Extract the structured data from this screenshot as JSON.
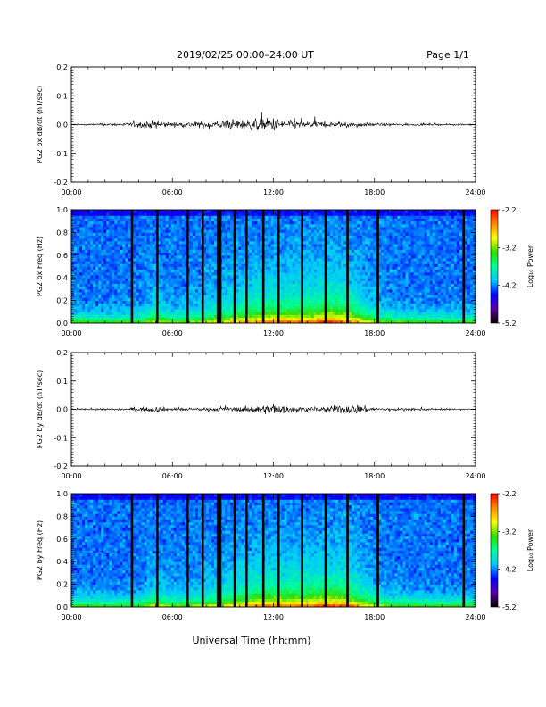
{
  "header": {
    "title": "2019/02/25  00:00–24:00 UT",
    "page": "Page 1/1"
  },
  "footer": {
    "xlabel": "Universal Time (hh:mm)"
  },
  "colors": {
    "trace": "#000000",
    "colorbar_stops": [
      "#000000",
      "#5a00a0",
      "#0000ff",
      "#00c8ff",
      "#00ff96",
      "#32dc00",
      "#ffff00",
      "#ff8c00",
      "#ff0000"
    ]
  },
  "chart_data": [
    {
      "type": "line",
      "ylabel": "PG2 bx dB/dt (nT/sec)",
      "xticks": [
        "00:00",
        "06:00",
        "12:00",
        "18:00",
        "24:00"
      ],
      "xlim": [
        0,
        24
      ],
      "ylim": [
        -0.2,
        0.2
      ],
      "yticks": [
        "0.2",
        "0.1",
        "0.0",
        "-0.1",
        "-0.2"
      ],
      "x_unit": "hours UT",
      "series": [
        {
          "x": [
            0,
            1,
            2,
            3,
            4,
            5,
            6,
            7,
            8,
            9,
            10,
            11,
            12,
            13,
            14,
            15,
            16,
            17,
            18,
            19,
            20,
            21,
            22,
            23,
            24
          ],
          "values": [
            0.005,
            0.005,
            0.008,
            0.01,
            0.018,
            0.03,
            0.015,
            0.02,
            0.025,
            0.03,
            0.035,
            0.04,
            0.05,
            0.03,
            0.025,
            0.02,
            0.02,
            0.015,
            0.01,
            0.008,
            0.007,
            0.006,
            0.005,
            0.005,
            0.005
          ]
        }
      ]
    },
    {
      "type": "heatmap",
      "ylabel": "PG2 bx Freq (Hz)",
      "xticks": [
        "00:00",
        "06:00",
        "12:00",
        "18:00",
        "24:00"
      ],
      "xlim": [
        0,
        24
      ],
      "ylim": [
        0,
        1
      ],
      "yticks": [
        "1.0",
        "0.8",
        "0.6",
        "0.4",
        "0.2",
        "0.0"
      ],
      "colorbar": {
        "label": "Log₁₀ Power",
        "ticks": [
          "-2.2",
          "-3.2",
          "-4.2",
          "-5.2"
        ],
        "range": [
          -5.2,
          -2.2
        ]
      },
      "gaps_hours": [
        3.6,
        5.1,
        6.9,
        7.8,
        8.7,
        8.85,
        9.7,
        10.4,
        11.4,
        12.3,
        13.7,
        15.1,
        16.4,
        18.2,
        23.3
      ]
    },
    {
      "type": "line",
      "ylabel": "PG2 by dB/dt (nT/sec)",
      "xticks": [
        "00:00",
        "06:00",
        "12:00",
        "18:00",
        "24:00"
      ],
      "xlim": [
        0,
        24
      ],
      "ylim": [
        -0.2,
        0.2
      ],
      "yticks": [
        "0.2",
        "0.1",
        "0.0",
        "-0.1",
        "-0.2"
      ],
      "x_unit": "hours UT",
      "series": [
        {
          "x": [
            0,
            1,
            2,
            3,
            4,
            5,
            6,
            7,
            8,
            9,
            10,
            11,
            12,
            13,
            14,
            15,
            16,
            17,
            18,
            19,
            20,
            21,
            22,
            23,
            24
          ],
          "values": [
            0.005,
            0.005,
            0.006,
            0.008,
            0.012,
            0.02,
            0.01,
            0.01,
            0.012,
            0.015,
            0.018,
            0.025,
            0.04,
            0.02,
            0.015,
            0.018,
            0.03,
            0.035,
            0.012,
            0.01,
            0.008,
            0.008,
            0.006,
            0.005,
            0.005
          ]
        }
      ]
    },
    {
      "type": "heatmap",
      "ylabel": "PG2 by Freq (Hz)",
      "xticks": [
        "00:00",
        "06:00",
        "12:00",
        "18:00",
        "24:00"
      ],
      "xlim": [
        0,
        24
      ],
      "ylim": [
        0,
        1
      ],
      "yticks": [
        "1.0",
        "0.8",
        "0.6",
        "0.4",
        "0.2",
        "0.0"
      ],
      "colorbar": {
        "label": "Log₁₀ Power",
        "ticks": [
          "-2.2",
          "-3.2",
          "-4.2",
          "-5.2"
        ],
        "range": [
          -5.2,
          -2.2
        ]
      },
      "gaps_hours": [
        3.6,
        5.1,
        6.9,
        7.8,
        8.7,
        8.85,
        9.7,
        10.4,
        11.4,
        12.3,
        13.7,
        15.1,
        16.4,
        18.2,
        23.3
      ]
    }
  ]
}
